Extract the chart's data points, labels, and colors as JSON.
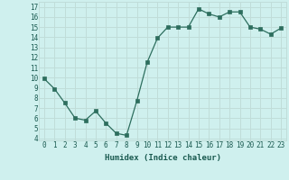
{
  "x": [
    0,
    1,
    2,
    3,
    4,
    5,
    6,
    7,
    8,
    9,
    10,
    11,
    12,
    13,
    14,
    15,
    16,
    17,
    18,
    19,
    20,
    21,
    22,
    23
  ],
  "y": [
    9.9,
    8.9,
    7.5,
    6.0,
    5.8,
    6.7,
    5.5,
    4.5,
    4.3,
    7.7,
    11.5,
    13.9,
    15.0,
    15.0,
    15.0,
    16.8,
    16.3,
    16.0,
    16.5,
    16.5,
    15.0,
    14.8,
    14.3,
    14.9
  ],
  "line_color": "#2d6e5e",
  "bg_color": "#cff0ee",
  "grid_color": "#c0ddd9",
  "xlabel": "Humidex (Indice chaleur)",
  "ylabel_ticks": [
    4,
    5,
    6,
    7,
    8,
    9,
    10,
    11,
    12,
    13,
    14,
    15,
    16,
    17
  ],
  "xlim": [
    -0.5,
    23.5
  ],
  "ylim": [
    3.8,
    17.5
  ],
  "marker_size": 2.2,
  "font_color": "#1a5a50",
  "font_size": 5.5,
  "xlabel_fontsize": 6.5,
  "linewidth": 0.9
}
